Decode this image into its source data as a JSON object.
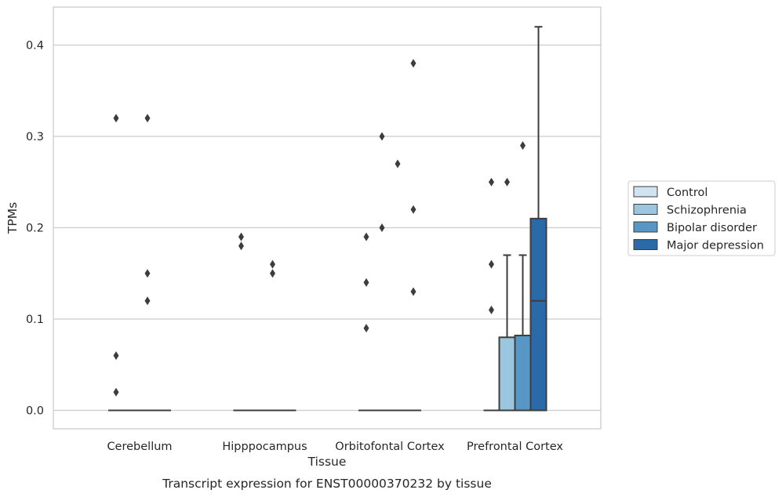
{
  "chart_data": {
    "type": "box",
    "title": "Transcript expression for ENST00000370232 by tissue",
    "xlabel": "Tissue",
    "ylabel": "TPMs",
    "ylim": [
      -0.021,
      0.442
    ],
    "yticks": [
      0.0,
      0.1,
      0.2,
      0.3,
      0.4
    ],
    "ytick_labels": [
      "0.0",
      "0.1",
      "0.2",
      "0.3",
      "0.4"
    ],
    "grid": "horizontal",
    "legend_position": "right",
    "categories": [
      "Cerebellum",
      "Hipppocampus",
      "Orbitofontal Cortex",
      "Prefrontal Cortex"
    ],
    "series": [
      {
        "name": "Control",
        "color": "#d1e2f1",
        "boxes": [
          {
            "q1": 0,
            "median": 0,
            "q3": 0,
            "whisker_low": 0,
            "whisker_high": 0,
            "outliers": [
              0.32,
              0.06,
              0.02
            ]
          },
          {
            "q1": 0,
            "median": 0,
            "q3": 0,
            "whisker_low": 0,
            "whisker_high": 0,
            "outliers": [
              0.19,
              0.18
            ]
          },
          {
            "q1": 0,
            "median": 0,
            "q3": 0,
            "whisker_low": 0,
            "whisker_high": 0,
            "outliers": [
              0.19,
              0.14,
              0.09
            ]
          },
          {
            "q1": 0,
            "median": 0,
            "q3": 0,
            "whisker_low": 0,
            "whisker_high": 0,
            "outliers": [
              0.25,
              0.16,
              0.11
            ]
          }
        ]
      },
      {
        "name": "Schizophrenia",
        "color": "#9bc6df",
        "boxes": [
          {
            "q1": 0,
            "median": 0,
            "q3": 0,
            "whisker_low": 0,
            "whisker_high": 0,
            "outliers": []
          },
          {
            "q1": 0,
            "median": 0,
            "q3": 0,
            "whisker_low": 0,
            "whisker_high": 0,
            "outliers": []
          },
          {
            "q1": 0,
            "median": 0,
            "q3": 0,
            "whisker_low": 0,
            "whisker_high": 0,
            "outliers": [
              0.3,
              0.2
            ]
          },
          {
            "q1": 0,
            "median": 0,
            "q3": 0.08,
            "whisker_low": 0,
            "whisker_high": 0.17,
            "outliers": [
              0.25
            ]
          }
        ]
      },
      {
        "name": "Bipolar disorder",
        "color": "#5697c6",
        "boxes": [
          {
            "q1": 0,
            "median": 0,
            "q3": 0,
            "whisker_low": 0,
            "whisker_high": 0,
            "outliers": [
              0.32,
              0.15,
              0.12
            ]
          },
          {
            "q1": 0,
            "median": 0,
            "q3": 0,
            "whisker_low": 0,
            "whisker_high": 0,
            "outliers": [
              0.16,
              0.15
            ]
          },
          {
            "q1": 0,
            "median": 0,
            "q3": 0,
            "whisker_low": 0,
            "whisker_high": 0,
            "outliers": [
              0.27
            ]
          },
          {
            "q1": 0,
            "median": 0,
            "q3": 0.082,
            "whisker_low": 0,
            "whisker_high": 0.17,
            "outliers": [
              0.29
            ]
          }
        ]
      },
      {
        "name": "Major depression",
        "color": "#2b6aa8",
        "boxes": [
          {
            "q1": 0,
            "median": 0,
            "q3": 0,
            "whisker_low": 0,
            "whisker_high": 0,
            "outliers": []
          },
          {
            "q1": 0,
            "median": 0,
            "q3": 0,
            "whisker_low": 0,
            "whisker_high": 0,
            "outliers": []
          },
          {
            "q1": 0,
            "median": 0,
            "q3": 0,
            "whisker_low": 0,
            "whisker_high": 0,
            "outliers": [
              0.38,
              0.22,
              0.13
            ]
          },
          {
            "q1": 0,
            "median": 0.12,
            "q3": 0.21,
            "whisker_low": 0,
            "whisker_high": 0.42,
            "outliers": []
          }
        ]
      }
    ]
  }
}
